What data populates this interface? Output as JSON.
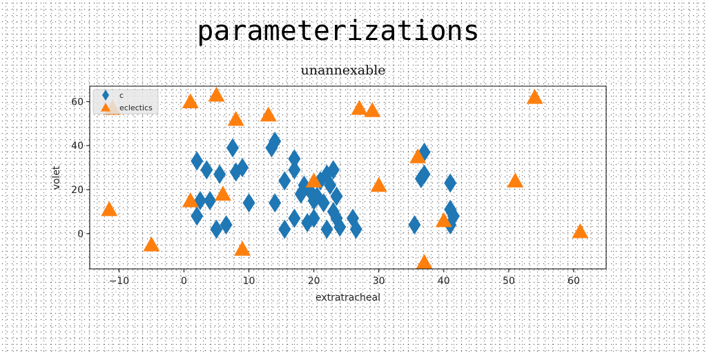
{
  "title": "parameterizations",
  "chart_data": {
    "type": "scatter",
    "subtitle": "unannexable",
    "xlabel": "extratracheal",
    "ylabel": "volet",
    "xlim": [
      -14.5,
      65
    ],
    "ylim": [
      -16,
      67
    ],
    "xticks": [
      -10,
      0,
      10,
      20,
      30,
      40,
      50,
      60
    ],
    "xtick_labels": [
      "−10",
      "0",
      "10",
      "20",
      "30",
      "40",
      "50",
      "60"
    ],
    "yticks": [
      0,
      20,
      40,
      60
    ],
    "ytick_labels": [
      "0",
      "20",
      "40",
      "60"
    ],
    "grid": false,
    "legend": "top-left",
    "colors": {
      "c": "#1f77b4",
      "eclectics": "#ff7f0e"
    },
    "series": [
      {
        "name": "c",
        "marker": "diamond",
        "points": [
          [
            2,
            33
          ],
          [
            3.5,
            29
          ],
          [
            5.5,
            27
          ],
          [
            7.5,
            39
          ],
          [
            8,
            28
          ],
          [
            9,
            30
          ],
          [
            2.5,
            15
          ],
          [
            4,
            15
          ],
          [
            2,
            8
          ],
          [
            5,
            2
          ],
          [
            6.5,
            4
          ],
          [
            10,
            14
          ],
          [
            13.5,
            39
          ],
          [
            14,
            42
          ],
          [
            14,
            14
          ],
          [
            15.5,
            24
          ],
          [
            15.5,
            2
          ],
          [
            17,
            34
          ],
          [
            17,
            29
          ],
          [
            17,
            7
          ],
          [
            18,
            18
          ],
          [
            18.5,
            22
          ],
          [
            19,
            5
          ],
          [
            19.5,
            19
          ],
          [
            20,
            7
          ],
          [
            20,
            15
          ],
          [
            20.5,
            17
          ],
          [
            21,
            24
          ],
          [
            21.5,
            14
          ],
          [
            22,
            27
          ],
          [
            22,
            2
          ],
          [
            22.5,
            22
          ],
          [
            23,
            29
          ],
          [
            23,
            10
          ],
          [
            23.5,
            17
          ],
          [
            23.5,
            7
          ],
          [
            24,
            3
          ],
          [
            26,
            7
          ],
          [
            26.5,
            2
          ],
          [
            35.5,
            4
          ],
          [
            36.5,
            25
          ],
          [
            37,
            37
          ],
          [
            37,
            27
          ],
          [
            41,
            23
          ],
          [
            41,
            11
          ],
          [
            41,
            4
          ],
          [
            41.5,
            8
          ]
        ]
      },
      {
        "name": "eclectics",
        "marker": "triangle",
        "points": [
          [
            -11,
            57
          ],
          [
            -11.5,
            11
          ],
          [
            -5,
            -5
          ],
          [
            1,
            60
          ],
          [
            1,
            15
          ],
          [
            5,
            63
          ],
          [
            6,
            18
          ],
          [
            8,
            52
          ],
          [
            9,
            -7
          ],
          [
            13,
            54
          ],
          [
            20,
            24
          ],
          [
            27,
            57
          ],
          [
            29,
            56
          ],
          [
            30,
            22
          ],
          [
            36,
            35
          ],
          [
            37,
            -13
          ],
          [
            40,
            6
          ],
          [
            51,
            24
          ],
          [
            54,
            62
          ],
          [
            61,
            1
          ]
        ]
      }
    ]
  }
}
